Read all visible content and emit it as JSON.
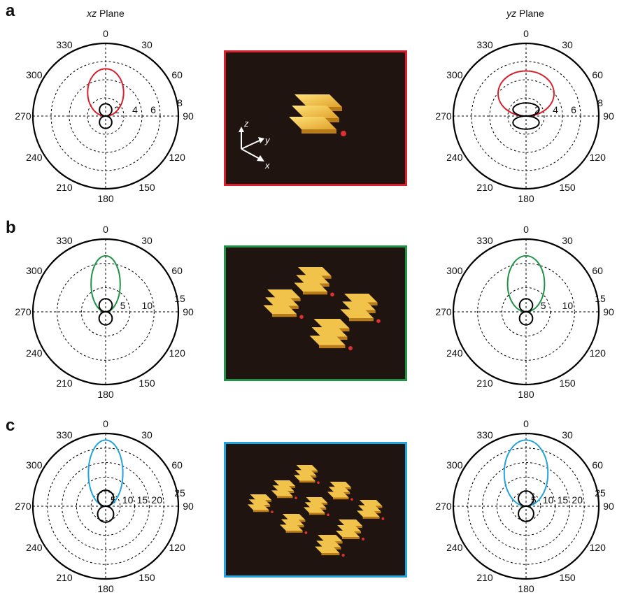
{
  "figure": {
    "panel_labels": [
      "a",
      "b",
      "c"
    ],
    "plane_titles": {
      "xz_italic": "xz",
      "xz_suffix": " Plane",
      "yz_italic": "yz",
      "yz_suffix": " Plane"
    },
    "angle_labels": [
      "0",
      "30",
      "60",
      "90",
      "120",
      "150",
      "180",
      "210",
      "240",
      "270",
      "300",
      "330"
    ],
    "axis_labels": {
      "z": "z",
      "y": "y",
      "x": "x"
    },
    "colors": {
      "a": "#d7202b",
      "b": "#1f9447",
      "c": "#21a3dd",
      "black": "#000000",
      "gold": "#f4c542"
    },
    "rows": [
      {
        "id": "a",
        "color": "#d7202b",
        "radial_ticks": [
          "2",
          "4",
          "6",
          "8"
        ],
        "pattern_strength": {
          "xz_main_lobe": 0.65,
          "xz_secondary_lobe": 0.17,
          "yz_main_lobe": 0.62,
          "yz_secondary_lobe": 0.18
        },
        "array_elements": 1
      },
      {
        "id": "b",
        "color": "#1f9447",
        "radial_ticks": [
          "5",
          "10",
          "15"
        ],
        "pattern_strength": {
          "xz_main_lobe": 0.77,
          "xz_secondary_lobe": 0.18,
          "yz_main_lobe": 0.77,
          "yz_secondary_lobe": 0.18
        },
        "array_elements": 4
      },
      {
        "id": "c",
        "color": "#21a3dd",
        "radial_ticks": [
          "5",
          "10",
          "15",
          "20",
          "25"
        ],
        "pattern_strength": {
          "xz_main_lobe": 0.91,
          "xz_secondary_lobe": 0.22,
          "yz_main_lobe": 0.91,
          "yz_secondary_lobe": 0.21
        },
        "array_elements": 9
      }
    ]
  }
}
